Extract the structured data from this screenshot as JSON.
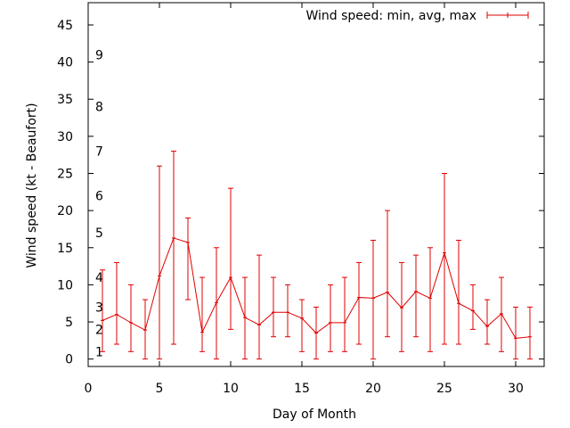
{
  "chart_data": {
    "type": "line",
    "xlabel": "Day of Month",
    "ylabel": "Wind speed (kt - Beaufort)",
    "xlim": [
      0,
      32
    ],
    "ylim": [
      -1,
      48
    ],
    "xticks": [
      0,
      5,
      10,
      15,
      20,
      25,
      30
    ],
    "yticks": [
      0,
      5,
      10,
      15,
      20,
      25,
      30,
      35,
      40,
      45
    ],
    "grid": false,
    "legend_position": "top-right",
    "colors": {
      "series": "#e00000",
      "axis": "#000000"
    },
    "beaufort_labels": [
      {
        "label": "1",
        "value": 1
      },
      {
        "label": "2",
        "value": 4
      },
      {
        "label": "3",
        "value": 7
      },
      {
        "label": "4",
        "value": 11
      },
      {
        "label": "5",
        "value": 17
      },
      {
        "label": "6",
        "value": 22
      },
      {
        "label": "7",
        "value": 28
      },
      {
        "label": "8",
        "value": 34
      },
      {
        "label": "9",
        "value": 41
      }
    ],
    "series": [
      {
        "name": "Wind speed: min, avg, max",
        "x": [
          1,
          2,
          3,
          4,
          5,
          6,
          7,
          8,
          9,
          10,
          11,
          12,
          13,
          14,
          15,
          16,
          17,
          18,
          19,
          20,
          21,
          22,
          23,
          24,
          25,
          26,
          27,
          28,
          29,
          30,
          31
        ],
        "avg": [
          5.2,
          6,
          4.9,
          3.9,
          11.2,
          16.3,
          15.7,
          3.6,
          7.6,
          11,
          5.6,
          4.6,
          6.3,
          6.3,
          5.5,
          3.5,
          4.9,
          4.9,
          8.3,
          8.2,
          9,
          6.9,
          9.1,
          8.2,
          14.3,
          7.5,
          6.5,
          4.4,
          6.1,
          2.8,
          3
        ],
        "min": [
          1,
          2,
          1,
          0,
          0,
          2,
          8,
          1,
          0,
          4,
          0,
          0,
          3,
          3,
          1,
          0,
          1,
          1,
          2,
          0,
          3,
          1,
          3,
          1,
          2,
          2,
          4,
          2,
          1,
          0,
          0
        ],
        "max": [
          12,
          13,
          10,
          8,
          26,
          28,
          19,
          11,
          15,
          23,
          11,
          14,
          11,
          10,
          8,
          7,
          10,
          11,
          13,
          16,
          20,
          13,
          14,
          15,
          25,
          16,
          10,
          8,
          11,
          7,
          7
        ]
      }
    ]
  }
}
